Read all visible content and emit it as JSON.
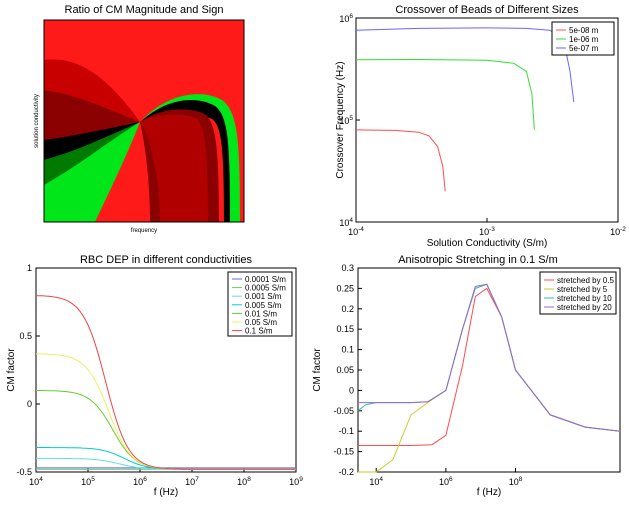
{
  "chart_data": [
    {
      "type": "heatmap",
      "title": "Ratio of CM Magnitude and Sign",
      "xlabel": "frequency",
      "ylabel": "solution conductivity",
      "colors": {
        "background": "#ff1a1a",
        "dark_red": "#8b0000",
        "black": "#000000",
        "green": "#00e619",
        "mid_red": "#c80000"
      }
    },
    {
      "type": "line",
      "title": "Crossover of Beads of Different Sizes",
      "xlabel": "Solution Conductivity (S/m)",
      "ylabel": "Crossover Frequency (Hz)",
      "xscale": "log",
      "yscale": "log",
      "xlim": [
        0.0001,
        0.01
      ],
      "ylim": [
        10000,
        1000000
      ],
      "xticks": [
        {
          "base": "10",
          "exp": "-4",
          "v": -4
        },
        {
          "base": "10",
          "exp": "-3",
          "v": -3
        },
        {
          "base": "10",
          "exp": "-2",
          "v": -2
        }
      ],
      "yticks": [
        {
          "base": "10",
          "exp": "4",
          "v": 4
        },
        {
          "base": "10",
          "exp": "5",
          "v": 5
        },
        {
          "base": "10",
          "exp": "6",
          "v": 6
        }
      ],
      "legend_position": "top-right",
      "series": [
        {
          "name": "5e-08 m",
          "color": "#ff4d4d",
          "x": [
            0.0001,
            0.0002,
            0.0003,
            0.00036,
            0.00042,
            0.00046,
            0.00048
          ],
          "y": [
            80000,
            79000,
            76000,
            70000,
            55000,
            35000,
            20000
          ]
        },
        {
          "name": "1e-06 m",
          "color": "#33dd33",
          "x": [
            0.0001,
            0.0003,
            0.001,
            0.0016,
            0.002,
            0.0022,
            0.0023
          ],
          "y": [
            390000,
            392000,
            385000,
            360000,
            300000,
            180000,
            80000
          ]
        },
        {
          "name": "5e-07 m",
          "color": "#6666ff",
          "x": [
            0.0001,
            0.0003,
            0.001,
            0.002,
            0.003,
            0.0038,
            0.0043,
            0.0046
          ],
          "y": [
            760000,
            790000,
            800000,
            790000,
            760000,
            650000,
            300000,
            150000
          ]
        }
      ]
    },
    {
      "type": "line",
      "title": "RBC DEP in different conductivities",
      "xlabel": "f (Hz)",
      "ylabel": "CM factor",
      "xscale": "log",
      "xlim": [
        10000,
        1000000000
      ],
      "ylim": [
        -0.5,
        1
      ],
      "xticks": [
        {
          "base": "10",
          "exp": "4",
          "v": 4
        },
        {
          "base": "10",
          "exp": "5",
          "v": 5
        },
        {
          "base": "10",
          "exp": "6",
          "v": 6
        },
        {
          "base": "10",
          "exp": "7",
          "v": 7
        },
        {
          "base": "10",
          "exp": "8",
          "v": 8
        },
        {
          "base": "10",
          "exp": "9",
          "v": 9
        }
      ],
      "yticks": [
        "1",
        "0.5",
        "0",
        "-0.5"
      ],
      "yticks_v": [
        1,
        0.5,
        0,
        -0.5
      ],
      "legend_position": "top-right",
      "series": [
        {
          "name": "0.0001 S/m",
          "color": "#6666ff",
          "y0": -0.47,
          "yinf": -0.47,
          "fc": 300000
        },
        {
          "name": "0.0005 S/m",
          "color": "#66cc66",
          "y0": -0.48,
          "yinf": -0.48,
          "fc": 300000
        },
        {
          "name": "0.001 S/m",
          "color": "#66dddd",
          "y0": -0.4,
          "yinf": -0.48,
          "fc": 400000
        },
        {
          "name": "0.005 S/m",
          "color": "#00cccc",
          "y0": -0.32,
          "yinf": -0.48,
          "fc": 500000
        },
        {
          "name": "0.01 S/m",
          "color": "#66cc33",
          "y0": 0.1,
          "yinf": -0.48,
          "fc": 300000
        },
        {
          "name": "0.05 S/m",
          "color": "#eeee66",
          "y0": 0.37,
          "yinf": -0.48,
          "fc": 250000
        },
        {
          "name": "0.1 S/m",
          "color": "#ee4444",
          "y0": 0.8,
          "yinf": -0.48,
          "fc": 220000
        }
      ]
    },
    {
      "type": "line",
      "title": "Anisotropic Stretching in 0.1 S/m",
      "xlabel": "f (Hz)",
      "ylabel": "CM factor",
      "xscale": "log",
      "xlim": [
        3000,
        100000000000
      ],
      "ylim": [
        -0.2,
        0.3
      ],
      "xticks": [
        {
          "base": "10",
          "exp": "4",
          "v": 4
        },
        {
          "base": "10",
          "exp": "6",
          "v": 6
        },
        {
          "base": "10",
          "exp": "8",
          "v": 8
        }
      ],
      "yticks": [
        "0.3",
        "0.25",
        "0.2",
        "0.15",
        "0.1",
        "0.05",
        "0",
        "-0.05",
        "-0.1",
        "-0.15",
        "-0.2"
      ],
      "yticks_v": [
        0.3,
        0.25,
        0.2,
        0.15,
        0.1,
        0.05,
        0,
        -0.05,
        -0.1,
        -0.15,
        -0.2
      ],
      "legend_position": "top-right",
      "series": [
        {
          "name": "stretched by 0.5",
          "color": "#ff4d4d",
          "x": [
            3000,
            100000,
            400000,
            1000000,
            3000000,
            7000000,
            15000000,
            40000000,
            100000000,
            1000000000,
            10000000000,
            100000000000
          ],
          "y": [
            -0.135,
            -0.135,
            -0.133,
            -0.11,
            0.06,
            0.23,
            0.25,
            0.18,
            0.05,
            -0.06,
            -0.09,
            -0.1
          ]
        },
        {
          "name": "stretched by 5",
          "color": "#cccc33",
          "x": [
            3000,
            10000,
            30000,
            100000,
            300000,
            1000000,
            3000000,
            7000000,
            15000000,
            40000000,
            100000000,
            1000000000,
            10000000000,
            100000000000
          ],
          "y": [
            -0.2,
            -0.2,
            -0.17,
            -0.06,
            -0.03,
            0.0,
            0.15,
            0.25,
            0.26,
            0.18,
            0.05,
            -0.06,
            -0.09,
            -0.1
          ]
        },
        {
          "name": "stretched by 10",
          "color": "#33bbbb",
          "x": [
            3000,
            5000,
            10000,
            100000,
            300000,
            1000000,
            3000000,
            7000000,
            15000000,
            40000000,
            100000000,
            1000000000,
            10000000000,
            100000000000
          ],
          "y": [
            -0.05,
            -0.035,
            -0.03,
            -0.03,
            -0.028,
            0.0,
            0.15,
            0.25,
            0.26,
            0.18,
            0.05,
            -0.06,
            -0.09,
            -0.1
          ]
        },
        {
          "name": "stretched by 20",
          "color": "#9966cc",
          "x": [
            3000,
            10000,
            100000,
            300000,
            1000000,
            3000000,
            7000000,
            15000000,
            40000000,
            100000000,
            1000000000,
            10000000000,
            100000000000
          ],
          "y": [
            -0.03,
            -0.03,
            -0.03,
            -0.028,
            0.0,
            0.15,
            0.255,
            0.26,
            0.18,
            0.05,
            -0.06,
            -0.09,
            -0.1
          ]
        }
      ]
    }
  ]
}
